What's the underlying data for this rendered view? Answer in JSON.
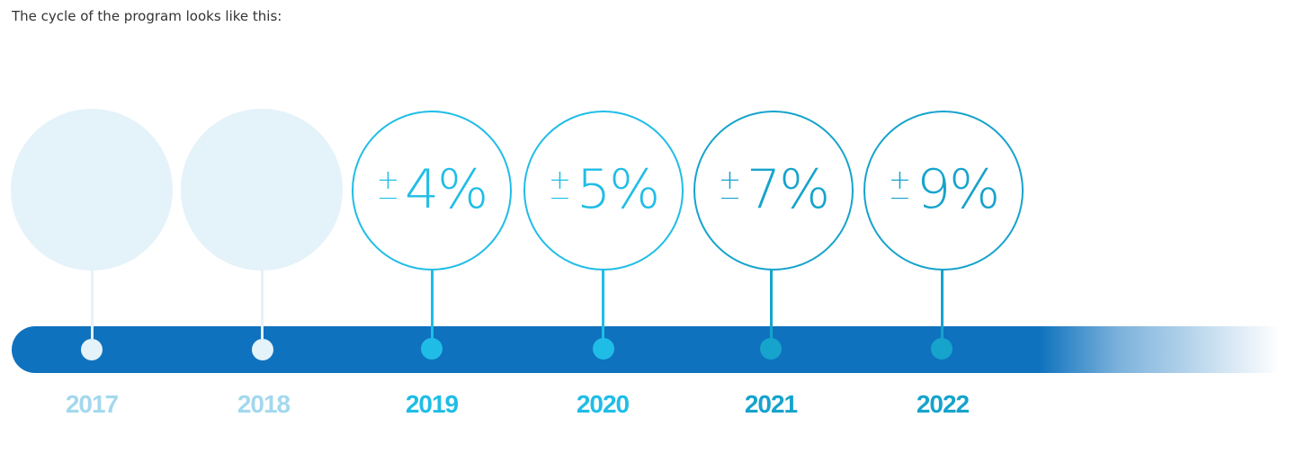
{
  "intro_text": "The cycle of the program looks like this:",
  "colors": {
    "track": "#0f72be",
    "past_circle": "#e4f2f9",
    "past_year": "#a3d8ee",
    "cyan": "#1fbde6",
    "teal": "#16a3cc"
  },
  "timeline": [
    {
      "year": "2017",
      "state": "past",
      "pm_plus": "",
      "pm_minus": "",
      "value": ""
    },
    {
      "year": "2018",
      "state": "past",
      "pm_plus": "",
      "pm_minus": "",
      "value": ""
    },
    {
      "year": "2019",
      "state": "active",
      "pm_plus": "+",
      "pm_minus": "−",
      "value": "4%"
    },
    {
      "year": "2020",
      "state": "active",
      "pm_plus": "+",
      "pm_minus": "−",
      "value": "5%"
    },
    {
      "year": "2021",
      "state": "active",
      "pm_plus": "+",
      "pm_minus": "−",
      "value": "7%"
    },
    {
      "year": "2022",
      "state": "active",
      "pm_plus": "+",
      "pm_minus": "−",
      "value": "9%"
    }
  ]
}
